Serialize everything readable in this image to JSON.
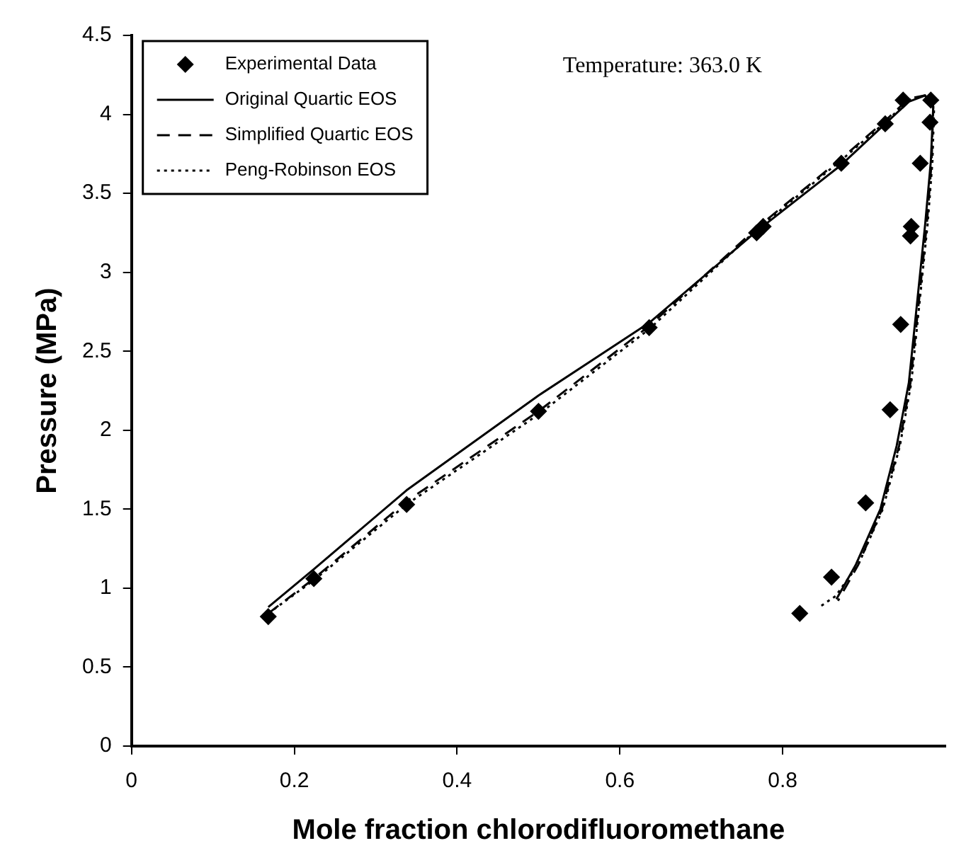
{
  "chart_data": {
    "type": "scatter",
    "xlabel": "Mole fraction chlorodifluoromethane",
    "ylabel": "Pressure (MPa)",
    "xlim": [
      0,
      1
    ],
    "xticks": [
      0,
      0.2,
      0.4,
      0.6,
      0.8
    ],
    "ylim": [
      0,
      4.5
    ],
    "yticks": [
      0,
      0.5,
      1,
      1.5,
      2,
      2.5,
      3,
      3.5,
      4,
      4.5
    ],
    "grid": false,
    "legend": "top left",
    "annotations": [
      "Temperature: 363.0 K"
    ],
    "series": [
      {
        "name": "Experimental Data",
        "type": "scatter",
        "marker": "diamond",
        "color": "#000000",
        "x": [
          0.168,
          0.224,
          0.338,
          0.5,
          0.636,
          0.768,
          0.776,
          0.872,
          0.926,
          0.948,
          0.982,
          0.981,
          0.969,
          0.958,
          0.957,
          0.945,
          0.932,
          0.902,
          0.86,
          0.821
        ],
        "values": [
          0.82,
          1.06,
          1.53,
          2.12,
          2.65,
          3.25,
          3.29,
          3.69,
          3.94,
          4.09,
          4.09,
          3.95,
          3.69,
          3.29,
          3.23,
          2.67,
          2.13,
          1.54,
          1.07,
          0.84
        ]
      },
      {
        "name": "Original Quartic EOS",
        "type": "line",
        "line_style": "solid",
        "marker": "none",
        "color": "#000000",
        "x": [
          0.168,
          0.224,
          0.338,
          0.5,
          0.636,
          0.768,
          0.872,
          0.926,
          0.955,
          0.975,
          0.985,
          0.982,
          0.975,
          0.965,
          0.955,
          0.94,
          0.92,
          0.89,
          0.866
        ],
        "values": [
          0.88,
          1.12,
          1.62,
          2.22,
          2.68,
          3.26,
          3.68,
          3.94,
          4.08,
          4.12,
          4.05,
          3.7,
          3.3,
          2.8,
          2.3,
          1.9,
          1.5,
          1.15,
          0.93
        ]
      },
      {
        "name": "Simplified Quartic EOS",
        "type": "line",
        "line_style": "dashed",
        "marker": "none",
        "color": "#000000",
        "x": [
          0.168,
          0.224,
          0.338,
          0.5,
          0.636,
          0.768,
          0.872,
          0.926,
          0.955,
          0.975,
          0.985,
          0.983,
          0.977,
          0.967,
          0.957,
          0.943,
          0.922,
          0.893,
          0.868
        ],
        "values": [
          0.84,
          1.06,
          1.55,
          2.12,
          2.66,
          3.28,
          3.72,
          3.96,
          4.1,
          4.12,
          4.05,
          3.7,
          3.3,
          2.8,
          2.3,
          1.9,
          1.5,
          1.15,
          0.92
        ]
      },
      {
        "name": "Peng-Robinson EOS",
        "type": "line",
        "line_style": "dotted",
        "marker": "none",
        "color": "#000000",
        "x": [
          0.168,
          0.224,
          0.338,
          0.5,
          0.636,
          0.768,
          0.872,
          0.926,
          0.955,
          0.975,
          0.986,
          0.984,
          0.978,
          0.968,
          0.958,
          0.944,
          0.923,
          0.893,
          0.865,
          0.845
        ],
        "values": [
          0.84,
          1.05,
          1.53,
          2.1,
          2.64,
          3.27,
          3.71,
          3.95,
          4.09,
          4.12,
          4.04,
          3.7,
          3.3,
          2.8,
          2.3,
          1.9,
          1.5,
          1.15,
          0.95,
          0.88
        ]
      }
    ]
  }
}
